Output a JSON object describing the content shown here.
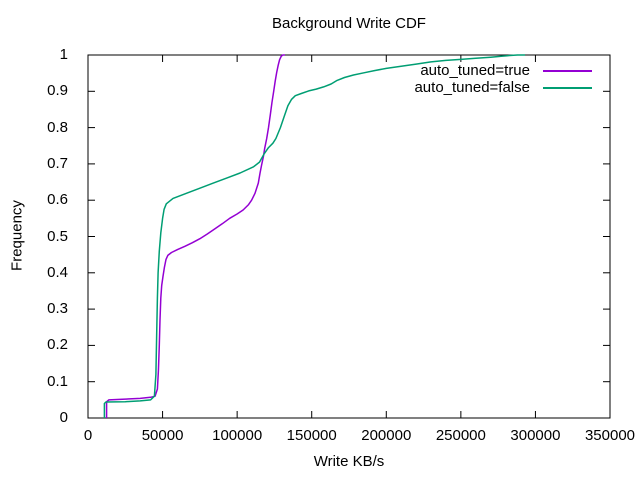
{
  "chart_data": {
    "type": "line",
    "title": "Background Write CDF",
    "xlabel": "Write KB/s",
    "ylabel": "Frequency",
    "xlim": [
      0,
      350000
    ],
    "ylim": [
      0,
      1
    ],
    "x_ticks": [
      0,
      50000,
      100000,
      150000,
      200000,
      250000,
      300000,
      350000
    ],
    "y_ticks": [
      0,
      0.1,
      0.2,
      0.3,
      0.4,
      0.5,
      0.6,
      0.7,
      0.8,
      0.9,
      1
    ],
    "grid": false,
    "legend_position": "top-right-inside",
    "axis_color": "#000000",
    "series": [
      {
        "name": "auto_tuned=true",
        "color": "#9400d3",
        "points": [
          [
            12500,
            0
          ],
          [
            12500,
            0.045
          ],
          [
            14000,
            0.05
          ],
          [
            25000,
            0.052
          ],
          [
            35000,
            0.054
          ],
          [
            42000,
            0.057
          ],
          [
            45000,
            0.06
          ],
          [
            46500,
            0.08
          ],
          [
            47200,
            0.13
          ],
          [
            47800,
            0.2
          ],
          [
            48300,
            0.27
          ],
          [
            48800,
            0.33
          ],
          [
            49400,
            0.365
          ],
          [
            50300,
            0.39
          ],
          [
            51200,
            0.415
          ],
          [
            52300,
            0.437
          ],
          [
            53500,
            0.448
          ],
          [
            56000,
            0.456
          ],
          [
            60000,
            0.464
          ],
          [
            65000,
            0.473
          ],
          [
            70000,
            0.483
          ],
          [
            75000,
            0.494
          ],
          [
            80000,
            0.507
          ],
          [
            85000,
            0.521
          ],
          [
            90000,
            0.535
          ],
          [
            95000,
            0.55
          ],
          [
            100000,
            0.562
          ],
          [
            104000,
            0.573
          ],
          [
            107500,
            0.587
          ],
          [
            109700,
            0.6
          ],
          [
            112000,
            0.619
          ],
          [
            114200,
            0.647
          ],
          [
            115300,
            0.674
          ],
          [
            116400,
            0.697
          ],
          [
            117600,
            0.72
          ],
          [
            118500,
            0.743
          ],
          [
            119800,
            0.77
          ],
          [
            121000,
            0.8
          ],
          [
            122200,
            0.835
          ],
          [
            123400,
            0.87
          ],
          [
            124500,
            0.9
          ],
          [
            125500,
            0.928
          ],
          [
            126500,
            0.952
          ],
          [
            127500,
            0.972
          ],
          [
            128500,
            0.987
          ],
          [
            129500,
            0.996
          ],
          [
            130500,
            1
          ],
          [
            132000,
            1
          ]
        ]
      },
      {
        "name": "auto_tuned=false",
        "color": "#009e73",
        "points": [
          [
            11000,
            0
          ],
          [
            11000,
            0.04
          ],
          [
            12000,
            0.044
          ],
          [
            25000,
            0.045
          ],
          [
            35000,
            0.047
          ],
          [
            42000,
            0.05
          ],
          [
            44500,
            0.06
          ],
          [
            45500,
            0.12
          ],
          [
            46000,
            0.22
          ],
          [
            46500,
            0.33
          ],
          [
            47000,
            0.4
          ],
          [
            47800,
            0.46
          ],
          [
            48800,
            0.51
          ],
          [
            50000,
            0.55
          ],
          [
            51000,
            0.575
          ],
          [
            52500,
            0.59
          ],
          [
            57000,
            0.605
          ],
          [
            66000,
            0.619
          ],
          [
            75000,
            0.633
          ],
          [
            84000,
            0.647
          ],
          [
            93000,
            0.661
          ],
          [
            102000,
            0.675
          ],
          [
            111000,
            0.692
          ],
          [
            115000,
            0.705
          ],
          [
            118000,
            0.727
          ],
          [
            121000,
            0.745
          ],
          [
            124000,
            0.757
          ],
          [
            126000,
            0.77
          ],
          [
            129000,
            0.8
          ],
          [
            131500,
            0.83
          ],
          [
            134000,
            0.86
          ],
          [
            136500,
            0.878
          ],
          [
            139000,
            0.888
          ],
          [
            143000,
            0.894
          ],
          [
            148000,
            0.901
          ],
          [
            153000,
            0.906
          ],
          [
            158000,
            0.912
          ],
          [
            163000,
            0.92
          ],
          [
            167000,
            0.93
          ],
          [
            172000,
            0.938
          ],
          [
            178000,
            0.945
          ],
          [
            185000,
            0.951
          ],
          [
            192000,
            0.957
          ],
          [
            200000,
            0.963
          ],
          [
            210000,
            0.969
          ],
          [
            220000,
            0.975
          ],
          [
            230000,
            0.981
          ],
          [
            240000,
            0.985
          ],
          [
            250000,
            0.988
          ],
          [
            260000,
            0.991
          ],
          [
            270000,
            0.994
          ],
          [
            278000,
            0.997
          ],
          [
            284000,
            0.999
          ],
          [
            288000,
            1
          ],
          [
            293000,
            1
          ]
        ]
      }
    ]
  }
}
